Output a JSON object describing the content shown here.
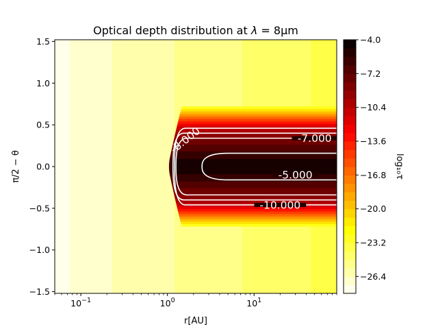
{
  "chart_data": {
    "type": "heatmap",
    "title_prefix": "Optical depth distribution at ",
    "title_symbol": "λ",
    "title_suffix": " = 8μm",
    "xlabel": "r[AU]",
    "ylabel": "π/2 − θ",
    "colorbar_label": "log₁₀τ",
    "x_scale": "log",
    "xlim": [
      0.05,
      90
    ],
    "ylim": [
      -1.52,
      1.52
    ],
    "x_ticks": [
      {
        "value": 0.1,
        "base": "10",
        "exp": "−1"
      },
      {
        "value": 1,
        "base": "10",
        "exp": "0"
      },
      {
        "value": 10,
        "base": "10",
        "exp": "1"
      }
    ],
    "y_ticks": [
      {
        "value": 1.5,
        "label": "1.5"
      },
      {
        "value": 1.0,
        "label": "1.0"
      },
      {
        "value": 0.5,
        "label": "0.5"
      },
      {
        "value": 0.0,
        "label": "0.0"
      },
      {
        "value": -0.5,
        "label": "−0.5"
      },
      {
        "value": -1.0,
        "label": "−1.0"
      },
      {
        "value": -1.5,
        "label": "−1.5"
      }
    ],
    "colorbar": {
      "min": -28.0,
      "max": -4.0,
      "ticks": [
        {
          "value": -4.0,
          "label": "−4.0"
        },
        {
          "value": -7.2,
          "label": "−7.2"
        },
        {
          "value": -10.4,
          "label": "−10.4"
        },
        {
          "value": -13.6,
          "label": "−13.6"
        },
        {
          "value": -16.8,
          "label": "−16.8"
        },
        {
          "value": -20.0,
          "label": "−20.0"
        },
        {
          "value": -23.2,
          "label": "−23.2"
        },
        {
          "value": -26.4,
          "label": "−26.4"
        }
      ]
    },
    "background_bands": [
      {
        "x0": 0.05,
        "x1": 0.075,
        "log_tau": -27.5
      },
      {
        "x0": 0.075,
        "x1": 0.23,
        "log_tau": -26.8
      },
      {
        "x0": 0.23,
        "x1": 1.2,
        "log_tau": -26.0
      },
      {
        "x0": 1.2,
        "x1": 7.2,
        "log_tau": -25.2
      },
      {
        "x0": 7.2,
        "x1": 45,
        "log_tau": -24.4
      },
      {
        "x0": 45,
        "x1": 90,
        "log_tau": -23.6
      }
    ],
    "disk": {
      "inner_edge_r": 1.2,
      "layers": [
        {
          "y_abs": 0.72,
          "log_tau": -22.5
        },
        {
          "y_abs": 0.69,
          "log_tau": -21.0
        },
        {
          "y_abs": 0.66,
          "log_tau": -19.5
        },
        {
          "y_abs": 0.63,
          "log_tau": -18.0
        },
        {
          "y_abs": 0.6,
          "log_tau": -16.5
        },
        {
          "y_abs": 0.57,
          "log_tau": -15.0
        },
        {
          "y_abs": 0.54,
          "log_tau": -13.5
        },
        {
          "y_abs": 0.51,
          "log_tau": -12.0
        },
        {
          "y_abs": 0.48,
          "log_tau": -10.8
        },
        {
          "y_abs": 0.44,
          "log_tau": -9.8
        },
        {
          "y_abs": 0.39,
          "log_tau": -8.8
        },
        {
          "y_abs": 0.33,
          "log_tau": -7.8
        },
        {
          "y_abs": 0.26,
          "log_tau": -6.8
        },
        {
          "y_abs": 0.18,
          "log_tau": -5.8
        },
        {
          "y_abs": 0.09,
          "log_tau": -4.8
        }
      ]
    },
    "contours": [
      {
        "level_label": "-10.000",
        "half_height": 0.46,
        "r_start": 1.25,
        "label_r": 20,
        "label_y": -0.46
      },
      {
        "level_label": "-8.000",
        "half_height": 0.4,
        "r_start": 1.2,
        "label_r": 1.6,
        "label_y": 0.32
      },
      {
        "level_label": "-7.000",
        "half_height": 0.34,
        "r_start": 1.3,
        "label_r": 50,
        "label_y": 0.34
      },
      {
        "level_label": "-5.000",
        "half_height": 0.16,
        "r_start": 2.6,
        "label_r": 30,
        "label_y": -0.1
      }
    ]
  }
}
